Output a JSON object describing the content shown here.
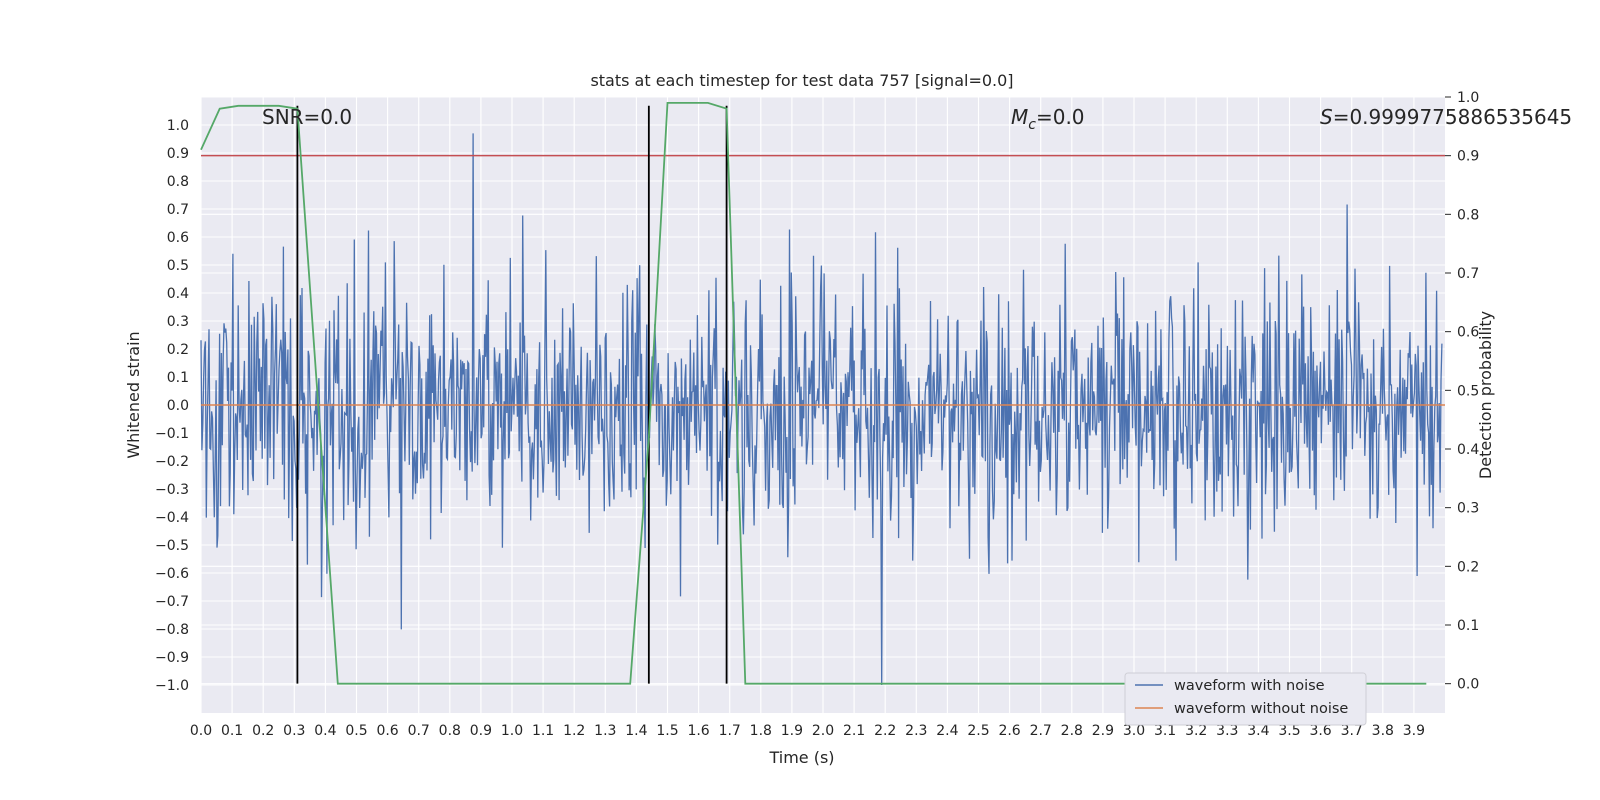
{
  "chart_data": {
    "type": "line",
    "title": "stats at each timestep for test data 757 [signal=0.0]",
    "xlabel": "Time (s)",
    "ylabel_left": "Whitened strain",
    "ylabel_right": "Detection probability",
    "xlim": [
      0.0,
      4.0
    ],
    "ylim_left": [
      -1.1,
      1.1
    ],
    "ylim_right": [
      -0.05,
      1.0
    ],
    "x_ticks": [
      "0.0",
      "0.1",
      "0.2",
      "0.3",
      "0.4",
      "0.5",
      "0.6",
      "0.7",
      "0.8",
      "0.9",
      "1.0",
      "1.1",
      "1.2",
      "1.3",
      "1.4",
      "1.5",
      "1.6",
      "1.7",
      "1.8",
      "1.9",
      "2.0",
      "2.1",
      "2.2",
      "2.3",
      "2.4",
      "2.5",
      "2.6",
      "2.7",
      "2.8",
      "2.9",
      "3.0",
      "3.1",
      "3.2",
      "3.3",
      "3.4",
      "3.5",
      "3.6",
      "3.7",
      "3.8",
      "3.9"
    ],
    "y_ticks_left": [
      "1.0",
      "0.9",
      "0.8",
      "0.7",
      "0.6",
      "0.5",
      "0.4",
      "0.3",
      "0.2",
      "0.1",
      "0.0",
      "−0.1",
      "−0.2",
      "−0.3",
      "−0.4",
      "−0.5",
      "−0.6",
      "−0.7",
      "−0.8",
      "−0.9",
      "−1.0"
    ],
    "y_ticks_right": [
      "1.0",
      "0.9",
      "0.8",
      "0.7",
      "0.6",
      "0.5",
      "0.4",
      "0.3",
      "0.2",
      "0.1",
      "0.0"
    ],
    "grid": true,
    "legend_position": "lower-right",
    "series": [
      {
        "name": "waveform with noise",
        "axis": "left",
        "color": "#4c72b0",
        "description": "noisy whitened strain, roughly within -0.85..0.97, one dip to -1.0 near 2.19 s"
      },
      {
        "name": "waveform without noise",
        "axis": "left",
        "color": "#dd8452",
        "value": 0.0
      },
      {
        "axis": "right",
        "color": "#55a868",
        "x": [
          0.0,
          0.06,
          0.12,
          0.25,
          0.31,
          0.44,
          0.5,
          1.38,
          1.44,
          1.5,
          1.63,
          1.69,
          1.75,
          3.94
        ],
        "y": [
          0.91,
          0.98,
          0.985,
          0.985,
          0.98,
          0.0,
          0.0,
          0.0,
          0.42,
          0.99,
          0.99,
          0.98,
          0.0,
          0.0
        ]
      }
    ],
    "threshold": {
      "axis": "right",
      "value": 0.9,
      "color": "#c44e52"
    },
    "vertical_lines": [
      0.31,
      1.44,
      1.69
    ],
    "annotations": {
      "snr": "SNR=0.0",
      "mc_symbol": "M",
      "mc_sub": "c",
      "mc_value": "=0.0",
      "s_symbol": "S",
      "s_value": "=0.9999775886535645"
    }
  }
}
